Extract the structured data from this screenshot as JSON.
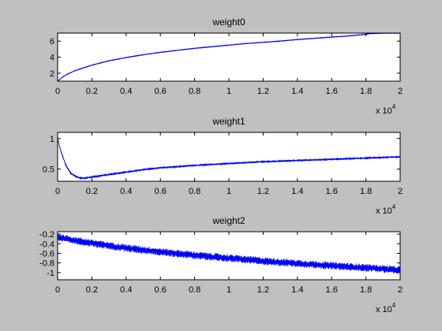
{
  "window": {
    "background": "#c0c0c0"
  },
  "colors": {
    "line": "#0000ff",
    "axes": "#000000",
    "plot_bg": "#ffffff"
  },
  "chart_data": [
    {
      "type": "line",
      "title": "weight0",
      "xlim": [
        0,
        20000
      ],
      "ylim": [
        1,
        7
      ],
      "xticks": [
        0,
        2000,
        4000,
        6000,
        8000,
        10000,
        12000,
        14000,
        16000,
        18000,
        20000
      ],
      "xtick_labels": [
        "0",
        "0.2",
        "0.4",
        "0.6",
        "0.8",
        "1",
        "1.2",
        "1.4",
        "1.6",
        "1.8",
        "2"
      ],
      "yticks": [
        2,
        4,
        6
      ],
      "ytick_labels": [
        "2",
        "4",
        "6"
      ],
      "x_multiplier": {
        "base": "x 10",
        "exponent": "4"
      },
      "series": [
        {
          "name": "weight0",
          "x": [
            0,
            250,
            500,
            1000,
            2000,
            3000,
            4000,
            5000,
            6000,
            7000,
            8000,
            9000,
            10000,
            11000,
            12000,
            13000,
            14000,
            15000,
            16000,
            17000,
            18000,
            18300,
            19000,
            20000
          ],
          "y": [
            1.0,
            1.45,
            1.8,
            2.3,
            3.0,
            3.55,
            3.95,
            4.3,
            4.6,
            4.85,
            5.1,
            5.3,
            5.5,
            5.7,
            5.85,
            6.0,
            6.2,
            6.35,
            6.5,
            6.65,
            6.85,
            6.95,
            6.99,
            7.0
          ],
          "noise": 0.03
        }
      ]
    },
    {
      "type": "line",
      "title": "weight1",
      "xlim": [
        0,
        20000
      ],
      "ylim": [
        0.3,
        1.1
      ],
      "xticks": [
        0,
        2000,
        4000,
        6000,
        8000,
        10000,
        12000,
        14000,
        16000,
        18000,
        20000
      ],
      "xtick_labels": [
        "0",
        "0.2",
        "0.4",
        "0.6",
        "0.8",
        "1",
        "1.2",
        "1.4",
        "1.6",
        "1.8",
        "2"
      ],
      "yticks": [
        0.5,
        1
      ],
      "ytick_labels": [
        "0.5",
        "1"
      ],
      "x_multiplier": {
        "base": "x 10",
        "exponent": "4"
      },
      "series": [
        {
          "name": "weight1",
          "x": [
            0,
            200,
            500,
            800,
            1200,
            1500,
            2000,
            3000,
            4000,
            5000,
            6000,
            8000,
            10000,
            12000,
            14000,
            16000,
            18000,
            20000
          ],
          "y": [
            1.0,
            0.78,
            0.55,
            0.42,
            0.36,
            0.35,
            0.37,
            0.41,
            0.45,
            0.49,
            0.52,
            0.56,
            0.59,
            0.62,
            0.64,
            0.66,
            0.68,
            0.7
          ],
          "noise": 0.012
        }
      ]
    },
    {
      "type": "line",
      "title": "weight2",
      "xlim": [
        0,
        20000
      ],
      "ylim": [
        -1.15,
        -0.15
      ],
      "xticks": [
        0,
        2000,
        4000,
        6000,
        8000,
        10000,
        12000,
        14000,
        16000,
        18000,
        20000
      ],
      "xtick_labels": [
        "0",
        "0.2",
        "0.4",
        "0.6",
        "0.8",
        "1",
        "1.2",
        "1.4",
        "1.6",
        "1.8",
        "2"
      ],
      "yticks": [
        -0.2,
        -0.4,
        -0.6,
        -0.8,
        -1
      ],
      "ytick_labels": [
        "-0.2",
        "-0.4",
        "-0.6",
        "-0.8",
        "-1"
      ],
      "x_multiplier": {
        "base": "x 10",
        "exponent": "4"
      },
      "series": [
        {
          "name": "weight2",
          "x": [
            0,
            500,
            1000,
            2000,
            3000,
            4000,
            5000,
            6000,
            8000,
            10000,
            12000,
            14000,
            16000,
            18000,
            20000
          ],
          "y": [
            -0.26,
            -0.3,
            -0.33,
            -0.39,
            -0.44,
            -0.49,
            -0.53,
            -0.57,
            -0.64,
            -0.7,
            -0.76,
            -0.81,
            -0.86,
            -0.9,
            -0.95
          ],
          "noise": 0.08
        }
      ]
    }
  ]
}
